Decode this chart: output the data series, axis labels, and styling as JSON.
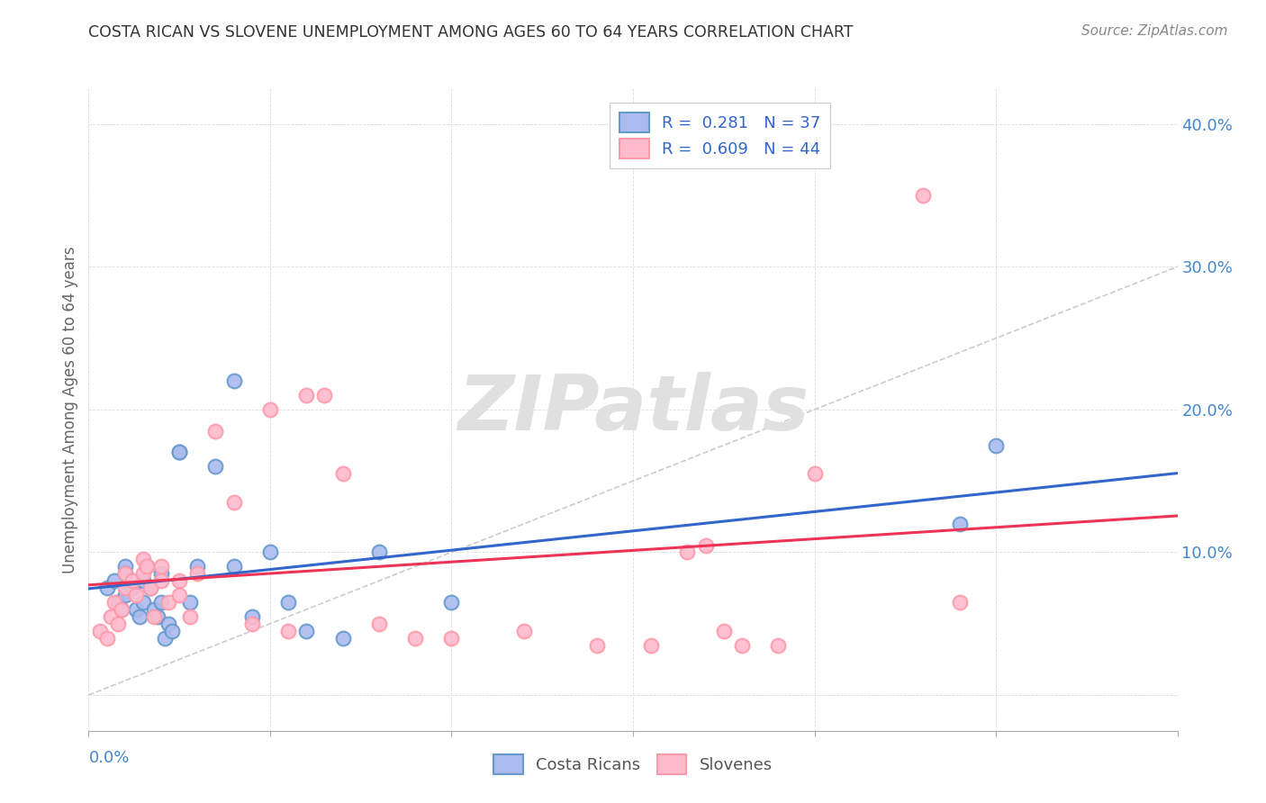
{
  "title": "COSTA RICAN VS SLOVENE UNEMPLOYMENT AMONG AGES 60 TO 64 YEARS CORRELATION CHART",
  "source": "Source: ZipAtlas.com",
  "ylabel": "Unemployment Among Ages 60 to 64 years",
  "xlim": [
    0.0,
    0.3
  ],
  "ylim": [
    -0.025,
    0.425
  ],
  "legend1_label": "R =  0.281   N = 37",
  "legend2_label": "R =  0.609   N = 44",
  "legend_bottom_labels": [
    "Costa Ricans",
    "Slovenes"
  ],
  "blue_scatter_face": "#AABBEE",
  "blue_scatter_edge": "#6699CC",
  "pink_scatter_face": "#FFBBCC",
  "pink_scatter_edge": "#FF99AA",
  "diagonal_color": "#CCCCCC",
  "blue_line_color": "#3366CC",
  "pink_line_color": "#EE3355",
  "watermark_color": "#E0E0E0",
  "title_color": "#333333",
  "axis_tick_color": "#4488CC",
  "ylabel_color": "#666666",
  "source_color": "#888888",
  "legend_text_color": "#3366CC",
  "bottom_legend_color": "#555555",
  "grid_color": "#DDDDDD",
  "spine_color": "#AAAAAA",
  "costa_ricans_x": [
    0.005,
    0.007,
    0.008,
    0.009,
    0.01,
    0.01,
    0.01,
    0.012,
    0.013,
    0.014,
    0.015,
    0.015,
    0.016,
    0.017,
    0.018,
    0.019,
    0.02,
    0.02,
    0.021,
    0.022,
    0.023,
    0.025,
    0.025,
    0.028,
    0.03,
    0.035,
    0.04,
    0.04,
    0.045,
    0.05,
    0.055,
    0.06,
    0.07,
    0.08,
    0.1,
    0.24,
    0.25
  ],
  "costa_ricans_y": [
    0.075,
    0.08,
    0.065,
    0.06,
    0.09,
    0.085,
    0.07,
    0.075,
    0.06,
    0.055,
    0.08,
    0.065,
    0.09,
    0.075,
    0.06,
    0.055,
    0.085,
    0.065,
    0.04,
    0.05,
    0.045,
    0.17,
    0.17,
    0.065,
    0.09,
    0.16,
    0.22,
    0.09,
    0.055,
    0.1,
    0.065,
    0.045,
    0.04,
    0.1,
    0.065,
    0.12,
    0.175
  ],
  "slovenes_x": [
    0.003,
    0.005,
    0.006,
    0.007,
    0.008,
    0.009,
    0.01,
    0.01,
    0.012,
    0.013,
    0.015,
    0.015,
    0.016,
    0.017,
    0.018,
    0.02,
    0.02,
    0.022,
    0.025,
    0.025,
    0.028,
    0.03,
    0.035,
    0.04,
    0.045,
    0.05,
    0.055,
    0.06,
    0.065,
    0.07,
    0.08,
    0.09,
    0.1,
    0.12,
    0.14,
    0.155,
    0.165,
    0.17,
    0.175,
    0.18,
    0.19,
    0.2,
    0.23,
    0.24
  ],
  "slovenes_y": [
    0.045,
    0.04,
    0.055,
    0.065,
    0.05,
    0.06,
    0.075,
    0.085,
    0.08,
    0.07,
    0.085,
    0.095,
    0.09,
    0.075,
    0.055,
    0.09,
    0.08,
    0.065,
    0.08,
    0.07,
    0.055,
    0.085,
    0.185,
    0.135,
    0.05,
    0.2,
    0.045,
    0.21,
    0.21,
    0.155,
    0.05,
    0.04,
    0.04,
    0.045,
    0.035,
    0.035,
    0.1,
    0.105,
    0.045,
    0.035,
    0.035,
    0.155,
    0.35,
    0.065
  ]
}
